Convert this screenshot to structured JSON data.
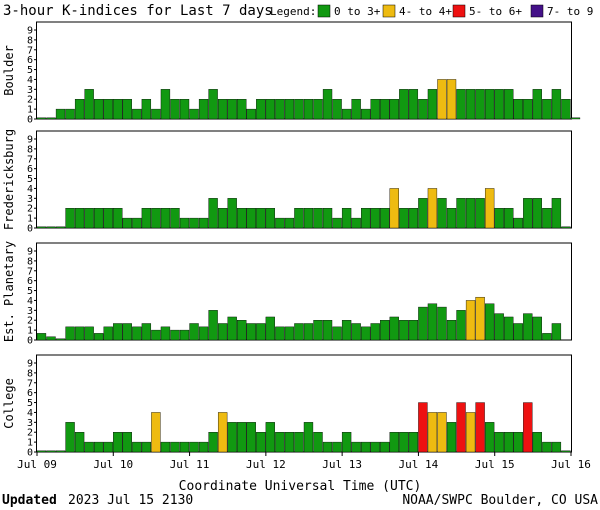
{
  "chart_data": {
    "type": "bar",
    "title": "3-hour K-indices for Last 7 days",
    "xlabel": "Coordinate Universal Time (UTC)",
    "legend": {
      "label": "Legend:",
      "position": "top-right",
      "entries": [
        {
          "label": "0 to 3+",
          "color": "#119911"
        },
        {
          "label": "4- to 4+",
          "color": "#eebb11"
        },
        {
          "label": "5- to 6+",
          "color": "#ee1111"
        },
        {
          "label": "7- to 9",
          "color": "#441188"
        }
      ]
    },
    "ylim": [
      0,
      9
    ],
    "yticks": [
      "0",
      "1",
      "2",
      "3",
      "4",
      "5",
      "6",
      "7",
      "8",
      "9"
    ],
    "grid": false,
    "xticks": [
      "Jul 09",
      "Jul 10",
      "Jul 11",
      "Jul 12",
      "Jul 13",
      "Jul 14",
      "Jul 15",
      "Jul 16"
    ],
    "intervals_per_day": 8,
    "series": [
      {
        "name": "Boulder",
        "values": [
          0,
          0,
          1,
          1,
          2,
          3,
          2,
          2,
          2,
          2,
          1,
          2,
          1,
          3,
          2,
          2,
          1,
          2,
          3,
          2,
          2,
          2,
          1,
          2,
          2,
          2,
          2,
          2,
          2,
          2,
          3,
          2,
          1,
          2,
          1,
          2,
          2,
          2,
          3,
          3,
          2,
          3,
          4,
          4,
          3,
          3,
          3,
          3,
          3,
          3,
          2,
          2,
          3,
          2,
          3,
          2,
          0
        ]
      },
      {
        "name": "Fredericksburg",
        "values": [
          0,
          0,
          0,
          2,
          2,
          2,
          2,
          2,
          2,
          1,
          1,
          2,
          2,
          2,
          2,
          1,
          1,
          1,
          3,
          2,
          3,
          2,
          2,
          2,
          2,
          1,
          1,
          2,
          2,
          2,
          2,
          1,
          2,
          1,
          2,
          2,
          2,
          4,
          2,
          2,
          3,
          4,
          3,
          2,
          3,
          3,
          3,
          4,
          2,
          2,
          1,
          3,
          3,
          2,
          3,
          0
        ]
      },
      {
        "name": "Est. Planetary",
        "values": [
          0.67,
          0.33,
          0,
          1.33,
          1.33,
          1.33,
          0.67,
          1.33,
          1.67,
          1.67,
          1.33,
          1.67,
          1,
          1.33,
          1,
          1,
          1.67,
          1.33,
          3,
          1.67,
          2.33,
          2,
          1.67,
          1.67,
          2.33,
          1.33,
          1.33,
          1.67,
          1.67,
          2,
          2,
          1.33,
          2,
          1.67,
          1.33,
          1.67,
          2,
          2.33,
          2,
          2,
          3.33,
          3.67,
          3.33,
          2,
          3,
          4,
          4.33,
          3.67,
          2.67,
          2.33,
          1.67,
          2.67,
          2.33,
          0.67,
          1.67
        ]
      },
      {
        "name": "College",
        "values": [
          0,
          0,
          0,
          3,
          2,
          1,
          1,
          1,
          2,
          2,
          1,
          1,
          4,
          1,
          1,
          1,
          1,
          1,
          2,
          4,
          3,
          3,
          3,
          2,
          3,
          2,
          2,
          2,
          3,
          2,
          1,
          1,
          2,
          1,
          1,
          1,
          1,
          2,
          2,
          2,
          5,
          4,
          4,
          3,
          5,
          4,
          5,
          3,
          2,
          2,
          2,
          5,
          2,
          1,
          1,
          0
        ]
      }
    ]
  },
  "footer": {
    "updated_label": "Updated",
    "updated_value": "2023 Jul 15 2130",
    "credit": "NOAA/SWPC Boulder, CO USA"
  }
}
